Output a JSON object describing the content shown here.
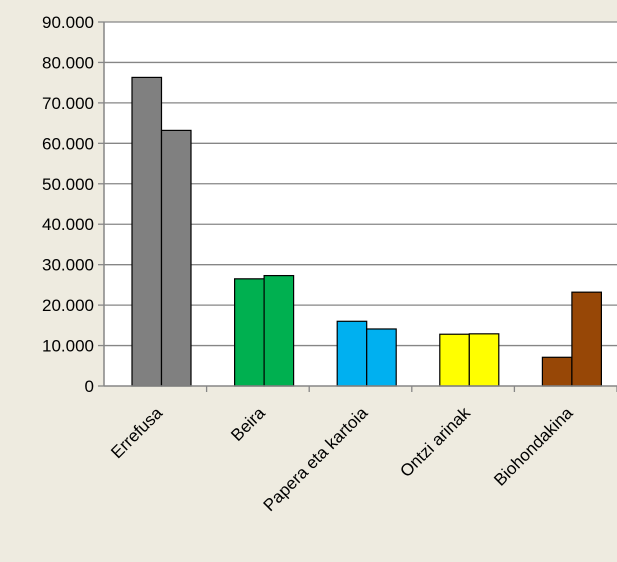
{
  "chart_data": {
    "type": "bar",
    "categories": [
      "Errefusa",
      "Beira",
      "Papera eta kartoia",
      "Ontzi arinak",
      "Biohondakina"
    ],
    "series": [
      {
        "values": [
          76300,
          26500,
          16000,
          12800,
          7100
        ]
      },
      {
        "values": [
          63200,
          27300,
          14100,
          12900,
          23200
        ]
      }
    ],
    "colors": [
      "#808080",
      "#00b050",
      "#00b0f0",
      "#ffff00",
      "#974706"
    ],
    "yticks": [
      "0",
      "10.000",
      "20.000",
      "30.000",
      "40.000",
      "50.000",
      "60.000",
      "70.000",
      "80.000",
      "90.000"
    ],
    "ylim": [
      0,
      90000
    ],
    "grid": true,
    "title": "",
    "xlabel": "",
    "ylabel": ""
  }
}
